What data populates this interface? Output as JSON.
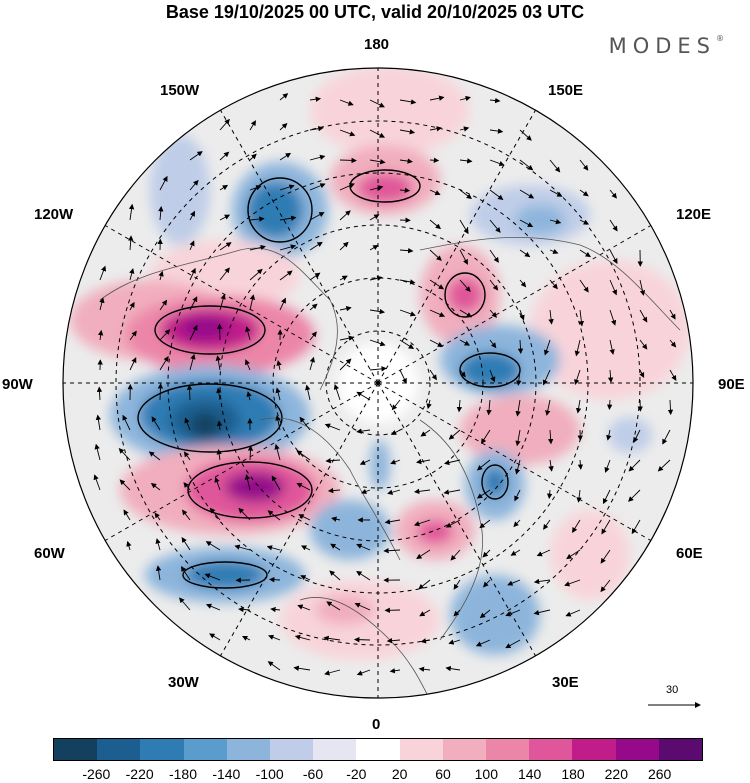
{
  "title": "Base 19/10/2025 00 UTC, valid 20/10/2025 03 UTC",
  "brand": {
    "name": "MODES",
    "mark": "®"
  },
  "longitude_labels": {
    "top": "180",
    "top_left": "150W",
    "top_right": "150E",
    "upper_left": "120W",
    "upper_right": "120E",
    "left": "90W",
    "right": "90E",
    "lower_left": "60W",
    "lower_right": "60E",
    "bottom_left": "30W",
    "bottom_right": "30E",
    "bottom": "0"
  },
  "wind_reference": {
    "label": "30"
  },
  "colorbar": {
    "colors": [
      "#13405f",
      "#1c5e8f",
      "#2f7cb4",
      "#5a9ccb",
      "#8db5dc",
      "#bfcde8",
      "#e6e6f3",
      "#ffffff",
      "#f8d4da",
      "#f1aebe",
      "#ec86a8",
      "#e0569a",
      "#c11d8a",
      "#95098a",
      "#5b0a6f"
    ],
    "ticks": [
      "-260",
      "-220",
      "-180",
      "-140",
      "-100",
      "-60",
      "-20",
      "20",
      "60",
      "100",
      "140",
      "180",
      "220",
      "260"
    ]
  }
}
